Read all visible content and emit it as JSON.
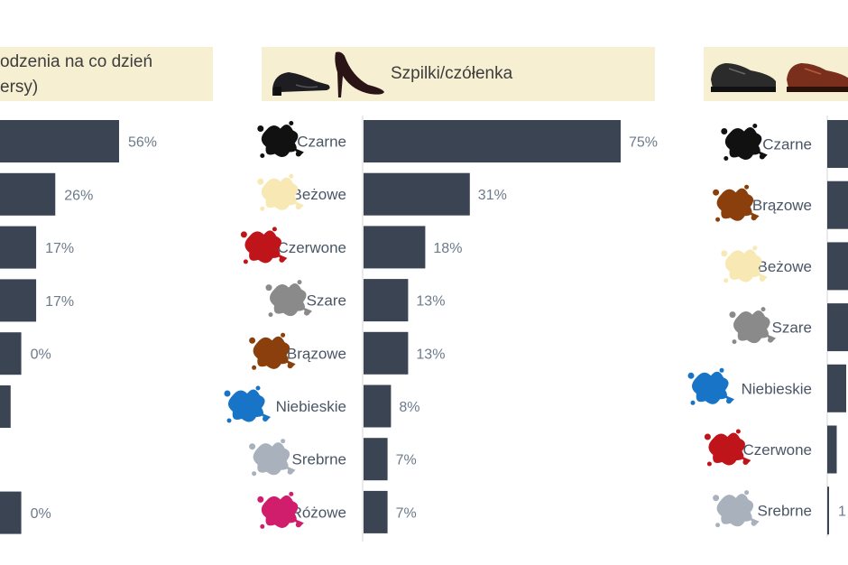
{
  "colors": {
    "bar": "#3b4453",
    "header_bg": "#f6efd2",
    "splat": {
      "black": "#111111",
      "beige": "#f7e8b4",
      "red": "#c0141b",
      "gray": "#8a8a8a",
      "brown": "#8b3f0c",
      "blue": "#1874c6",
      "silver": "#a8b1bc",
      "pink": "#d01d6c"
    }
  },
  "chart_data": [
    {
      "type": "bar",
      "orientation": "horizontal",
      "title_line1": "odzenia na co dzień",
      "title_line2": "ersy)",
      "categories": [
        "",
        "",
        "",
        "",
        "",
        "",
        "",
        ""
      ],
      "values": [
        56,
        26,
        17,
        17,
        10,
        5,
        0,
        10
      ],
      "labels": [
        "56%",
        "26%",
        "17%",
        "17%",
        "0%",
        "",
        "",
        "0%"
      ]
    },
    {
      "type": "bar",
      "orientation": "horizontal",
      "title": "Szpilki/czółenka",
      "categories": [
        "Czarne",
        "Beżowe",
        "Czerwone",
        "Szare",
        "Brązowe",
        "Niebieskie",
        "Srebrne",
        "Różowe"
      ],
      "icons": [
        "black",
        "beige",
        "red",
        "gray",
        "brown",
        "blue",
        "silver",
        "pink"
      ],
      "values": [
        75,
        31,
        18,
        13,
        13,
        8,
        7,
        7
      ],
      "labels": [
        "75%",
        "31%",
        "18%",
        "13%",
        "13%",
        "8%",
        "7%",
        "7%"
      ]
    },
    {
      "type": "bar",
      "orientation": "horizontal",
      "title": "",
      "categories": [
        "Czarne",
        "Brązowe",
        "Beżowe",
        "Szare",
        "Niebieskie",
        "Czerwone",
        "Srebrne"
      ],
      "icons": [
        "black",
        "brown",
        "beige",
        "gray",
        "blue",
        "red",
        "silver"
      ],
      "values": [
        40,
        40,
        40,
        40,
        30,
        15,
        1
      ],
      "labels": [
        "",
        "",
        "",
        "",
        "",
        "",
        "1"
      ]
    }
  ]
}
